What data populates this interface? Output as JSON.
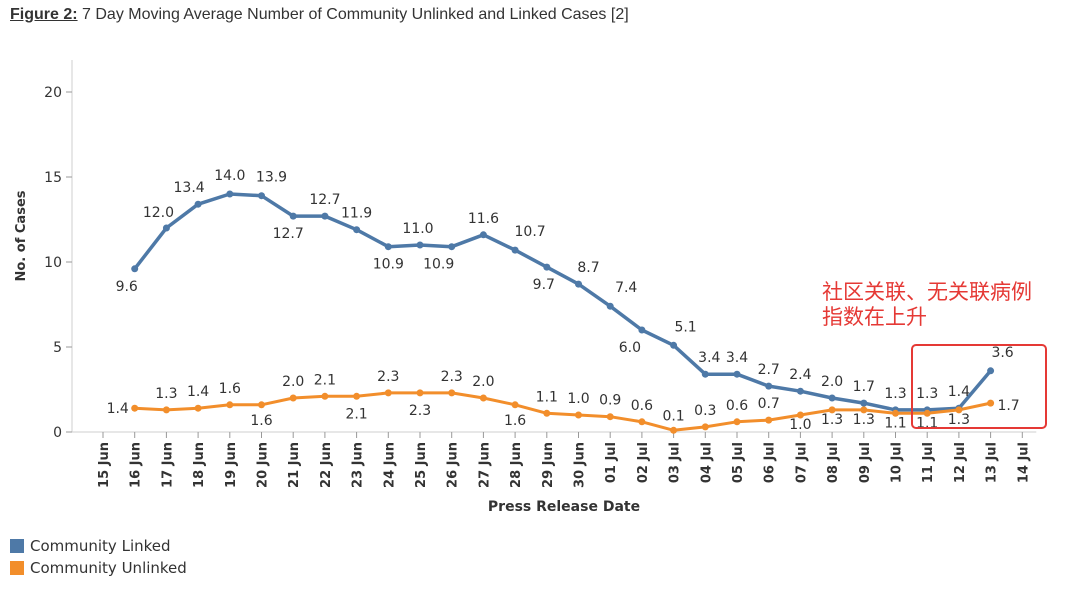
{
  "figure": {
    "label": "Figure 2:",
    "title": "7 Day Moving Average Number of Community Unlinked and Linked Cases [2]"
  },
  "annotation": {
    "line1": "社区关联、无关联病例",
    "line2": "指数在上升"
  },
  "colors": {
    "linked": "#4e79a7",
    "unlinked": "#f28e2b",
    "annotation": "#e53935"
  },
  "chart_data": {
    "type": "line",
    "title": "Figure 2: 7 Day Moving Average Number of Community Unlinked and Linked Cases [2]",
    "xlabel": "Press Release Date",
    "ylabel": "No. of Cases",
    "ylim": [
      0,
      20
    ],
    "yticks": [
      0,
      5,
      10,
      15,
      20
    ],
    "grid": false,
    "legend_position": "bottom-left",
    "categories": [
      "15 Jun",
      "16 Jun",
      "17 Jun",
      "18 Jun",
      "19 Jun",
      "20 Jun",
      "21 Jun",
      "22 Jun",
      "23 Jun",
      "24 Jun",
      "25 Jun",
      "26 Jun",
      "27 Jun",
      "28 Jun",
      "29 Jun",
      "30 Jun",
      "01 Jul",
      "02 Jul",
      "03 Jul",
      "04 Jul",
      "05 Jul",
      "06 Jul",
      "07 Jul",
      "08 Jul",
      "09 Jul",
      "10 Jul",
      "11 Jul",
      "12 Jul",
      "13 Jul",
      "14 Jul"
    ],
    "series": [
      {
        "name": "Community Linked",
        "color": "#4e79a7",
        "values": [
          null,
          9.6,
          12.0,
          13.4,
          14.0,
          13.9,
          12.7,
          12.7,
          11.9,
          10.9,
          11.0,
          10.9,
          11.6,
          10.7,
          9.7,
          8.7,
          7.4,
          6.0,
          5.1,
          3.4,
          3.4,
          2.7,
          2.4,
          2.0,
          1.7,
          1.3,
          1.3,
          1.4,
          3.6,
          null
        ],
        "labels": [
          null,
          "9.6",
          "12.0",
          "13.4",
          "14.0",
          "13.9",
          "12.7",
          "12.7",
          "11.9",
          "10.9",
          "11.0",
          "10.9",
          "11.6",
          "10.7",
          "9.7",
          "8.7",
          "7.4",
          "6.0",
          "5.1",
          "3.4",
          "3.4",
          "2.7",
          "2.4",
          "2.0",
          "1.7",
          "1.3",
          "1.3",
          "1.4",
          "3.6",
          null
        ]
      },
      {
        "name": "Community Unlinked",
        "color": "#f28e2b",
        "values": [
          null,
          1.4,
          1.3,
          1.4,
          1.6,
          1.6,
          2.0,
          2.1,
          2.1,
          2.3,
          2.3,
          2.3,
          2.0,
          1.6,
          1.1,
          1.0,
          0.9,
          0.6,
          0.1,
          0.3,
          0.6,
          0.7,
          1.0,
          1.3,
          1.3,
          1.1,
          1.1,
          1.3,
          1.7,
          null
        ],
        "labels": [
          null,
          "1.4",
          "1.3",
          "1.4",
          "1.6",
          "1.6",
          "2.0",
          "2.1",
          "2.1",
          "2.3",
          "2.3",
          "2.3",
          "2.0",
          "1.6",
          "1.1",
          "1.0",
          "0.9",
          "0.6",
          "0.1",
          "0.3",
          "0.6",
          "0.7",
          "1.0",
          "1.3",
          "1.3",
          "1.1",
          "1.1",
          "1.3",
          "1.7",
          null
        ]
      }
    ]
  }
}
